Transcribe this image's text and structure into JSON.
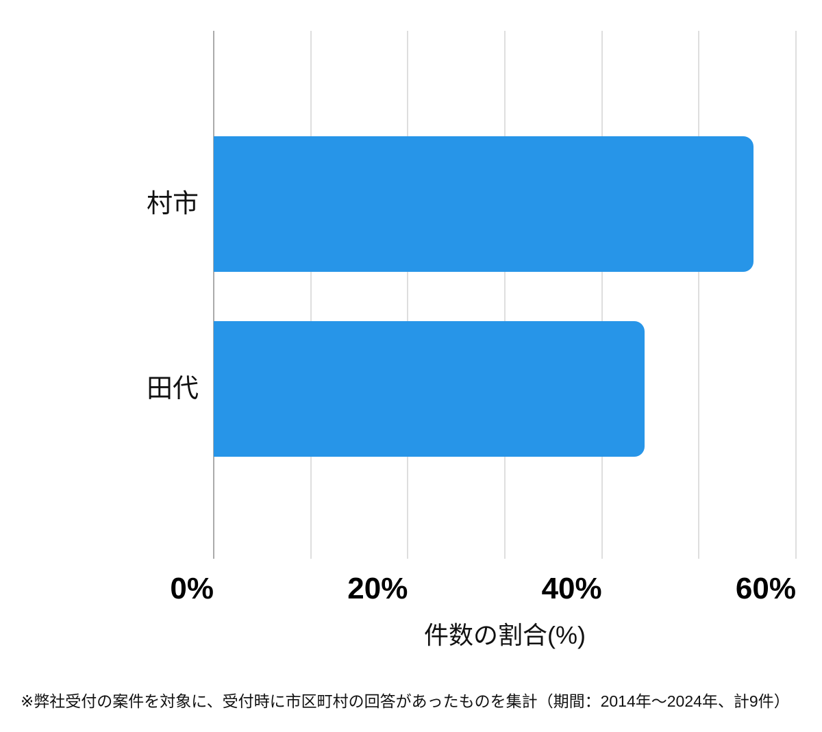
{
  "chart_data": {
    "type": "bar",
    "orientation": "horizontal",
    "categories": [
      "村市",
      "田代"
    ],
    "values": [
      55.6,
      44.4
    ],
    "title": "",
    "xlabel": "件数の割合(%)",
    "ylabel": "",
    "xlim": [
      0,
      60
    ],
    "xticks": [
      0,
      20,
      40,
      60
    ],
    "xtick_labels": [
      "0%",
      "20%",
      "40%",
      "60%"
    ],
    "gridline_interval": 10,
    "grid": true,
    "legend": false,
    "bar_color": "#2795e8",
    "gridline_color": "#dedede",
    "axis_line_color": "#ababab",
    "text_color": "#111111"
  },
  "footnote": "※弊社受付の案件を対象に、受付時に市区町村の回答があったものを集計（期間：2014年～2024年、計9件）"
}
